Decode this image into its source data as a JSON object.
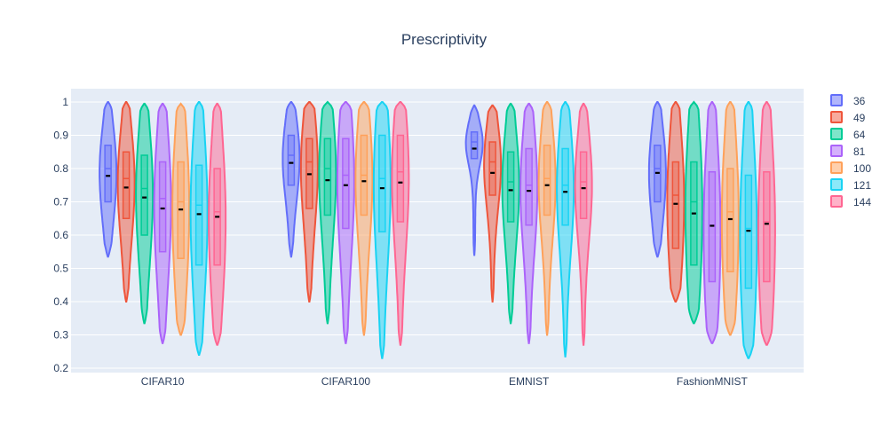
{
  "chart_data": {
    "type": "violin",
    "title": "Prescriptivity",
    "categories": [
      "CIFAR10",
      "CIFAR100",
      "EMNIST",
      "FashionMNIST"
    ],
    "ylim": [
      0.2,
      1.0
    ],
    "yticks": [
      0.2,
      0.3,
      0.4,
      0.5,
      0.6,
      0.7,
      0.8,
      0.9,
      1
    ],
    "ytick_labels": [
      "0.2",
      "0.3",
      "0.4",
      "0.5",
      "0.6",
      "0.7",
      "0.8",
      "0.9",
      "1"
    ],
    "grid": true,
    "legend_position": "top-right",
    "plot_bgcolor": "#e5ecf6",
    "series": [
      {
        "name": "36",
        "color": "#636efa",
        "mean": [
          0.778,
          0.817,
          0.86,
          0.787
        ],
        "min": [
          0.535,
          0.535,
          0.54,
          0.535
        ],
        "max": [
          1.0,
          1.0,
          0.99,
          1.0
        ],
        "q1": [
          0.7,
          0.75,
          0.83,
          0.7
        ],
        "median": [
          0.8,
          0.84,
          0.88,
          0.8
        ],
        "q3": [
          0.87,
          0.9,
          0.91,
          0.87
        ]
      },
      {
        "name": "49",
        "color": "#ef553b",
        "mean": [
          0.743,
          0.783,
          0.787,
          0.694
        ],
        "min": [
          0.4,
          0.4,
          0.4,
          0.4
        ],
        "max": [
          1.0,
          1.0,
          0.99,
          1.0
        ],
        "q1": [
          0.65,
          0.68,
          0.72,
          0.56
        ],
        "median": [
          0.77,
          0.82,
          0.82,
          0.72
        ],
        "q3": [
          0.85,
          0.89,
          0.88,
          0.82
        ]
      },
      {
        "name": "64",
        "color": "#00cc96",
        "mean": [
          0.713,
          0.765,
          0.735,
          0.665
        ],
        "min": [
          0.335,
          0.335,
          0.335,
          0.335
        ],
        "max": [
          0.995,
          1.0,
          0.995,
          1.0
        ],
        "q1": [
          0.6,
          0.66,
          0.64,
          0.51
        ],
        "median": [
          0.74,
          0.8,
          0.76,
          0.7
        ],
        "q3": [
          0.84,
          0.89,
          0.85,
          0.82
        ]
      },
      {
        "name": "81",
        "color": "#ab63fa",
        "mean": [
          0.68,
          0.75,
          0.733,
          0.628
        ],
        "min": [
          0.275,
          0.275,
          0.275,
          0.275
        ],
        "max": [
          0.995,
          1.0,
          0.995,
          1.0
        ],
        "q1": [
          0.55,
          0.62,
          0.63,
          0.46
        ],
        "median": [
          0.71,
          0.78,
          0.75,
          0.63
        ],
        "q3": [
          0.82,
          0.89,
          0.86,
          0.79
        ]
      },
      {
        "name": "100",
        "color": "#ffa15a",
        "mean": [
          0.677,
          0.762,
          0.75,
          0.648
        ],
        "min": [
          0.3,
          0.3,
          0.3,
          0.3
        ],
        "max": [
          0.995,
          1.0,
          1.0,
          1.0
        ],
        "q1": [
          0.53,
          0.66,
          0.66,
          0.49
        ],
        "median": [
          0.7,
          0.78,
          0.77,
          0.67
        ],
        "q3": [
          0.82,
          0.9,
          0.87,
          0.8
        ]
      },
      {
        "name": "121",
        "color": "#19d3f3",
        "mean": [
          0.663,
          0.741,
          0.73,
          0.613
        ],
        "min": [
          0.24,
          0.23,
          0.235,
          0.23
        ],
        "max": [
          1.0,
          1.0,
          1.0,
          1.0
        ],
        "q1": [
          0.51,
          0.61,
          0.63,
          0.44
        ],
        "median": [
          0.69,
          0.77,
          0.75,
          0.62
        ],
        "q3": [
          0.81,
          0.9,
          0.86,
          0.78
        ]
      },
      {
        "name": "144",
        "color": "#ff6692",
        "mean": [
          0.655,
          0.758,
          0.741,
          0.634
        ],
        "min": [
          0.27,
          0.27,
          0.27,
          0.27
        ],
        "max": [
          0.995,
          1.0,
          0.995,
          1.0
        ],
        "q1": [
          0.51,
          0.64,
          0.65,
          0.46
        ],
        "median": [
          0.67,
          0.79,
          0.76,
          0.64
        ],
        "q3": [
          0.8,
          0.9,
          0.85,
          0.79
        ]
      }
    ]
  }
}
